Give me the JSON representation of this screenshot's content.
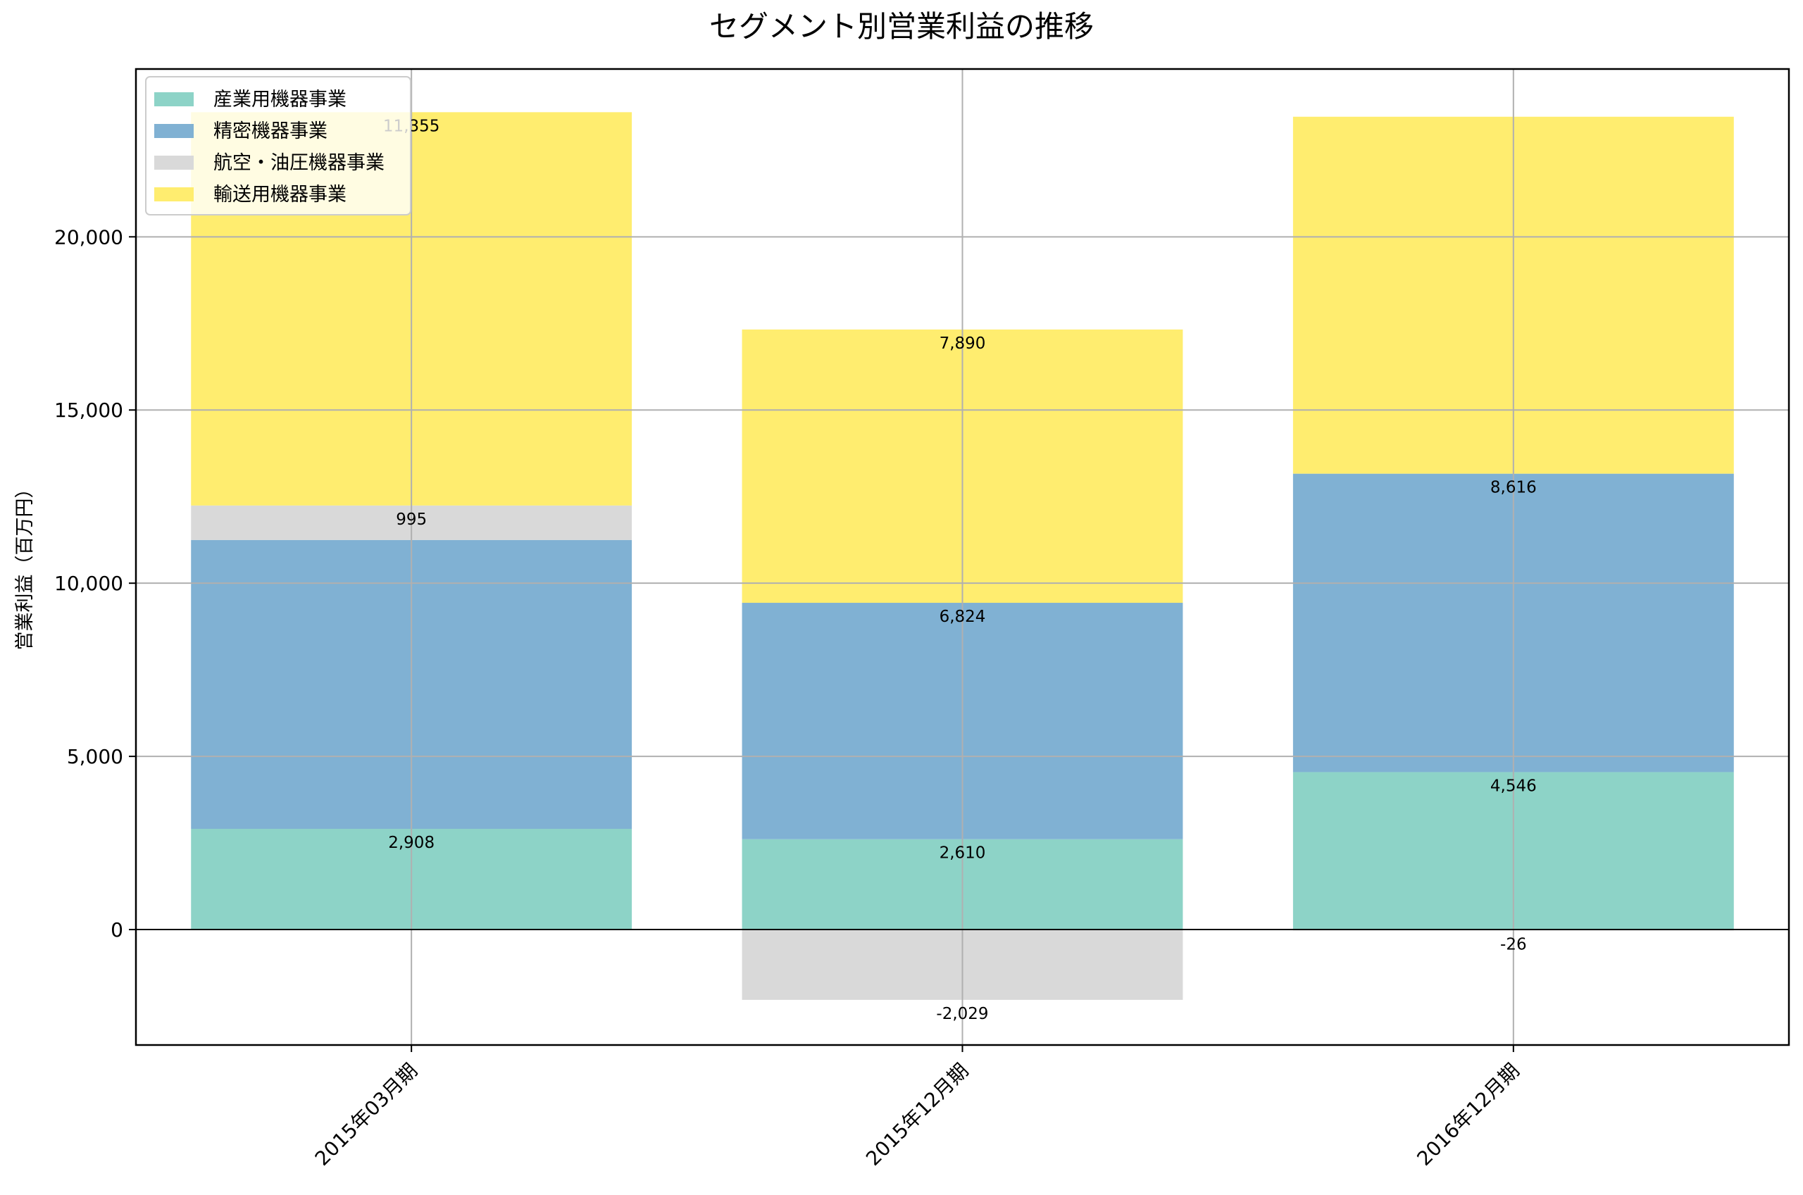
{
  "chart_data": {
    "type": "bar",
    "stacked": true,
    "title": "セグメント別営業利益の推移",
    "xlabel": "",
    "ylabel": "営業利益（百万円）",
    "ylim": [
      -3333,
      24845
    ],
    "yticks": [
      0,
      5000,
      10000,
      15000,
      20000
    ],
    "ytick_labels": [
      "0",
      "5,000",
      "10,000",
      "15,000",
      "20,000"
    ],
    "grid": true,
    "legend_position": "top-left",
    "categories": [
      "2015年03月期",
      "2015年12月期",
      "2016年12月期"
    ],
    "series": [
      {
        "name": "産業用機器事業",
        "color": "#8dd3c7",
        "values": [
          2908,
          2610,
          4546
        ],
        "labels": [
          "2,908",
          "2,610",
          "4,546"
        ]
      },
      {
        "name": "精密機器事業",
        "color": "#80b1d3",
        "values": [
          8340,
          6824,
          8616
        ],
        "labels": [
          "",
          "6,824",
          "8,616"
        ]
      },
      {
        "name": "航空・油圧機器事業",
        "color": "#d9d9d9",
        "values": [
          995,
          -2029,
          -26
        ],
        "labels": [
          "995",
          "-2,029",
          "-26"
        ]
      },
      {
        "name": "輸送用機器事業",
        "color": "#ffed6f",
        "values": [
          11355,
          7890,
          10305
        ],
        "labels": [
          "11,355",
          "7,890",
          ""
        ]
      }
    ]
  }
}
